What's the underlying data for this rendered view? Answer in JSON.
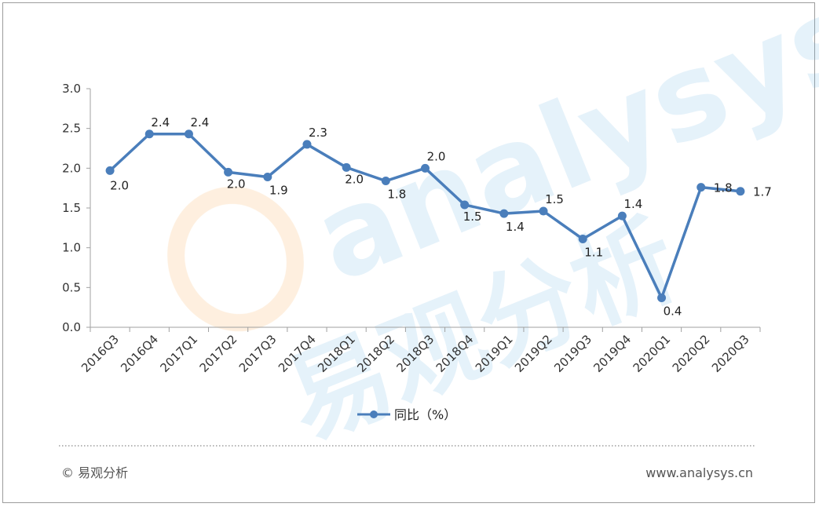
{
  "chart_data": {
    "type": "line",
    "categories": [
      "2016Q3",
      "2016Q4",
      "2017Q1",
      "2017Q2",
      "2017Q3",
      "2017Q4",
      "2018Q1",
      "2018Q2",
      "2018Q3",
      "2018Q4",
      "2019Q1",
      "2019Q2",
      "2019Q3",
      "2019Q4",
      "2020Q1",
      "2020Q2",
      "2020Q3"
    ],
    "series": [
      {
        "name": "同比（%）",
        "values": [
          1.97,
          2.43,
          2.43,
          1.95,
          1.89,
          2.3,
          2.01,
          1.84,
          2.0,
          1.54,
          1.43,
          1.46,
          1.11,
          1.4,
          0.37,
          1.76,
          1.71
        ],
        "labels": [
          "2.0",
          "2.4",
          "2.4",
          "2.0",
          "1.9",
          "2.3",
          "2.0",
          "1.8",
          "2.0",
          "1.5",
          "1.4",
          "1.5",
          "1.1",
          "1.4",
          "0.4",
          "1.8",
          "1.7"
        ],
        "color": "#4a7ebb"
      }
    ],
    "yticks": [
      "0.0",
      "0.5",
      "1.0",
      "1.5",
      "2.0",
      "2.5",
      "3.0"
    ],
    "ylim": [
      0,
      3
    ],
    "grid": false,
    "legend_position": "bottom"
  },
  "watermark": {
    "latin": "analysys",
    "chinese": "易观分析"
  },
  "footer": {
    "copyright": "© 易观分析",
    "website": "www.analysys.cn"
  }
}
